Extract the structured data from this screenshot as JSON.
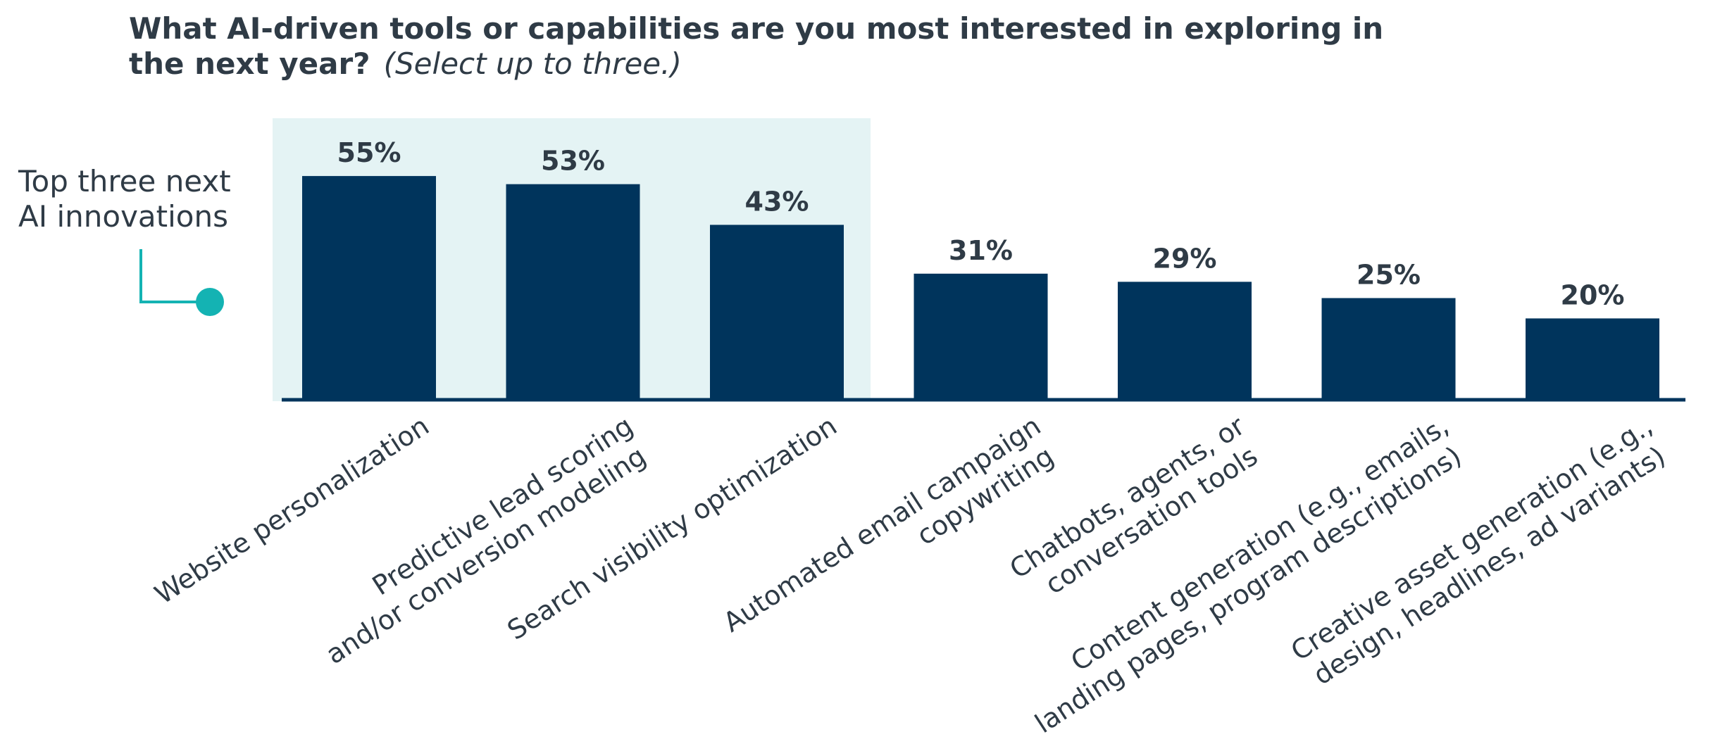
{
  "chart_data": {
    "type": "bar",
    "title": "What AI-driven tools or capabilities are you most interested in exploring in the next year?",
    "subtitle": "(Select up to three.)",
    "categories": [
      "Website personalization",
      "Predictive lead scoring and/or conversion modeling",
      "Search visibility optimization",
      "Automated email campaign copywriting",
      "Chatbots, agents, or conversation tools",
      "Content generation (e.g., emails, landing pages, program descriptions)",
      "Creative asset generation (e.g., design, headlines, ad variants)"
    ],
    "category_lines": [
      [
        "Website personalization"
      ],
      [
        "Predictive lead scoring",
        "and/or conversion modeling"
      ],
      [
        "Search visibility optimization"
      ],
      [
        "Automated email campaign",
        "copywriting"
      ],
      [
        "Chatbots, agents, or",
        "conversation tools"
      ],
      [
        "Content generation (e.g., emails,",
        "landing pages, program descriptions)"
      ],
      [
        "Creative asset generation (e.g.,",
        "design, headlines, ad variants)"
      ]
    ],
    "values": [
      55,
      53,
      43,
      31,
      29,
      25,
      20
    ],
    "value_labels": [
      "55%",
      "53%",
      "43%",
      "31%",
      "29%",
      "25%",
      "20%"
    ],
    "ylim": [
      0,
      60
    ],
    "grid": false,
    "legend": "none",
    "highlight": {
      "count": 3,
      "label_lines": [
        "Top three next",
        "AI innovations"
      ]
    },
    "colors": {
      "bar": "#00345c",
      "highlight_band": "#e4f3f4",
      "callout_accent": "#14b3b3",
      "text": "#2f3b46",
      "axis": "#00345c"
    }
  }
}
